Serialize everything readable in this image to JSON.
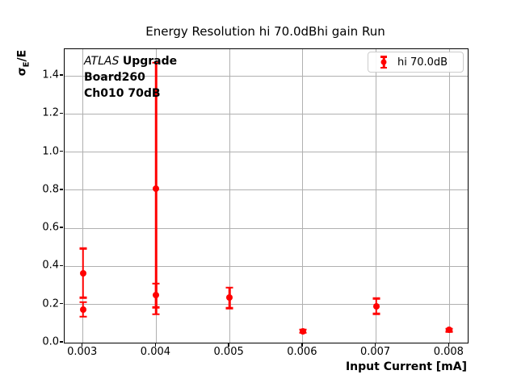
{
  "chart_data": {
    "type": "scatter",
    "title": "Energy Resolution hi 70.0dBhi gain Run",
    "xlabel": "Input Current [mA]",
    "ylabel_sigma": "σ",
    "ylabel_sub": "E",
    "ylabel_rest": "/E",
    "xlim": [
      0.00275,
      0.00825
    ],
    "ylim": [
      0,
      1.54
    ],
    "xticks": [
      0.003,
      0.004,
      0.005,
      0.006,
      0.007,
      0.008
    ],
    "xtick_labels": [
      "0.003",
      "0.004",
      "0.005",
      "0.006",
      "0.007",
      "0.008"
    ],
    "yticks": [
      0.0,
      0.2,
      0.4,
      0.6,
      0.8,
      1.0,
      1.2,
      1.4
    ],
    "ytick_labels": [
      "0.0",
      "0.2",
      "0.4",
      "0.6",
      "0.8",
      "1.0",
      "1.2",
      "1.4"
    ],
    "grid": true,
    "grid_color": "#b0b0b0",
    "series": [
      {
        "name": "hi 70.0dB",
        "color": "#ff0000",
        "marker": "circle-errorbar",
        "points": [
          {
            "x": 0.003,
            "y": 0.365,
            "yerr": 0.13
          },
          {
            "x": 0.003,
            "y": 0.175,
            "yerr": 0.038
          },
          {
            "x": 0.004,
            "y": 0.81,
            "yerr": 0.66
          },
          {
            "x": 0.004,
            "y": 0.248,
            "yerr": 0.062
          },
          {
            "x": 0.005,
            "y": 0.235,
            "yerr": 0.054
          },
          {
            "x": 0.006,
            "y": 0.06,
            "yerr": 0.008
          },
          {
            "x": 0.007,
            "y": 0.192,
            "yerr": 0.04
          },
          {
            "x": 0.008,
            "y": 0.066,
            "yerr": 0.008
          }
        ]
      }
    ],
    "legend": {
      "position": "upper right",
      "entries": [
        {
          "label": "hi 70.0dB",
          "color": "#ff0000"
        }
      ]
    },
    "annotation": {
      "experiment": "ATLAS",
      "tag": "Upgrade",
      "board": "Board260",
      "channel": "Ch010 70dB"
    }
  }
}
